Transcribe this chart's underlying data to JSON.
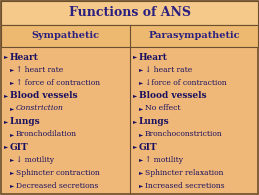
{
  "title": "Functions of ANS",
  "col1_header": "Sympathetic",
  "col2_header": "Parasympathetic",
  "bg_color": "#F0B878",
  "title_bg": "#F5C98A",
  "header_bg": "#EDB870",
  "border_color": "#6B5030",
  "title_color": "#2B2080",
  "header_color": "#2B2080",
  "text_color": "#1a1060",
  "col1_items": [
    {
      "level": 0,
      "text": "Heart",
      "style": "bold"
    },
    {
      "level": 1,
      "text": "↑ heart rate",
      "style": "normal"
    },
    {
      "level": 1,
      "text": "↑ force of contraction",
      "style": "normal"
    },
    {
      "level": 0,
      "text": "Blood vessels",
      "style": "bold"
    },
    {
      "level": 1,
      "text": "Constriction",
      "style": "italic"
    },
    {
      "level": 0,
      "text": "Lungs",
      "style": "bold"
    },
    {
      "level": 1,
      "text": "Bronchodilation",
      "style": "normal"
    },
    {
      "level": 0,
      "text": "GIT",
      "style": "bold"
    },
    {
      "level": 1,
      "text": "↓ motility",
      "style": "normal"
    },
    {
      "level": 1,
      "text": "Sphincter contraction",
      "style": "normal"
    },
    {
      "level": 1,
      "text": "Decreased secretions",
      "style": "normal"
    }
  ],
  "col2_items": [
    {
      "level": 0,
      "text": "Heart",
      "style": "bold"
    },
    {
      "level": 1,
      "text": "↓ heart rate",
      "style": "normal"
    },
    {
      "level": 1,
      "text": "↓force of contraction",
      "style": "normal"
    },
    {
      "level": 0,
      "text": "Blood vessels",
      "style": "bold"
    },
    {
      "level": 1,
      "text": "No effect",
      "style": "normal"
    },
    {
      "level": 0,
      "text": "Lungs",
      "style": "bold"
    },
    {
      "level": 1,
      "text": "Bronchoconstriction",
      "style": "normal"
    },
    {
      "level": 0,
      "text": "GIT",
      "style": "bold"
    },
    {
      "level": 1,
      "text": "↑ motility",
      "style": "normal"
    },
    {
      "level": 1,
      "text": "Sphincter relaxation",
      "style": "normal"
    },
    {
      "level": 1,
      "text": "Increased secretions",
      "style": "normal"
    }
  ]
}
